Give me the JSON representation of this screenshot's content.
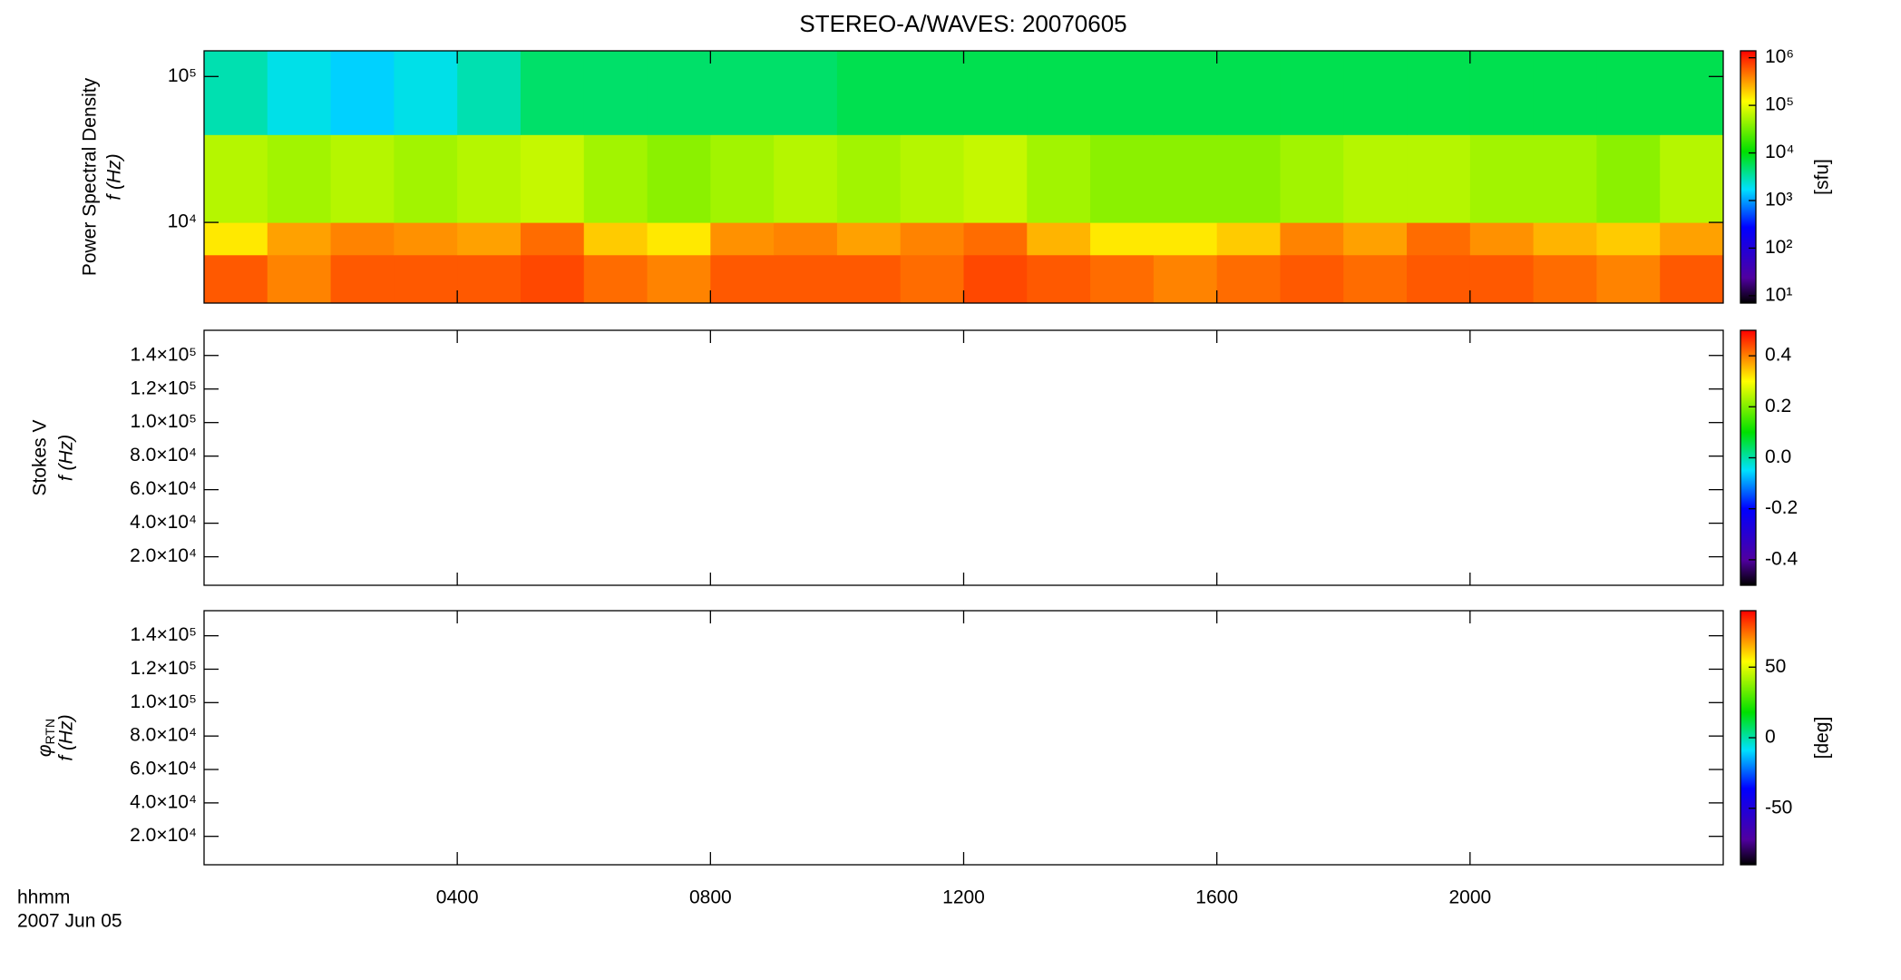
{
  "chart_data": [
    {
      "type": "heatmap",
      "title": "STEREO-A/WAVES: 20070605",
      "ylabel": "Power Spectral Density",
      "ylabel2": "f (Hz)",
      "xlim": [
        0,
        24
      ],
      "xticks": [
        4,
        8,
        12,
        16,
        20
      ],
      "ylog": true,
      "ylim": [
        2800,
        150000
      ],
      "yticks": [
        {
          "value": 10000,
          "label": "10⁴"
        },
        {
          "value": 100000,
          "label": "10⁵"
        }
      ],
      "x": [
        0,
        1,
        2,
        3,
        4,
        5,
        6,
        7,
        8,
        9,
        10,
        11,
        12,
        13,
        14,
        15,
        16,
        17,
        18,
        19,
        20,
        21,
        22,
        23,
        24
      ],
      "y": [
        2800,
        6000,
        10000,
        40000,
        150000
      ],
      "z": [
        [
          600000,
          400000,
          600000,
          600000,
          600000,
          700000,
          500000,
          400000,
          600000,
          600000,
          600000,
          500000,
          700000,
          600000,
          500000,
          400000,
          500000,
          600000,
          500000,
          600000,
          600000,
          500000,
          400000,
          600000
        ],
        [
          150000,
          300000,
          400000,
          350000,
          300000,
          500000,
          200000,
          150000,
          350000,
          400000,
          300000,
          400000,
          500000,
          250000,
          150000,
          150000,
          200000,
          400000,
          300000,
          500000,
          350000,
          250000,
          200000,
          300000
        ],
        [
          60000,
          50000,
          60000,
          50000,
          60000,
          70000,
          50000,
          40000,
          50000,
          60000,
          50000,
          60000,
          70000,
          50000,
          40000,
          40000,
          40000,
          50000,
          60000,
          60000,
          50000,
          50000,
          40000,
          60000
        ],
        [
          3000,
          2000,
          1500,
          2000,
          3000,
          5000,
          5000,
          5000,
          5000,
          5000,
          6000,
          6000,
          6000,
          6000,
          6000,
          6000,
          6000,
          6000,
          6000,
          6000,
          6000,
          6000,
          6000,
          6000
        ]
      ],
      "clog": true,
      "clim": [
        7,
        1400000
      ],
      "cticks": [
        {
          "value": 10,
          "label": "10¹"
        },
        {
          "value": 100,
          "label": "10²"
        },
        {
          "value": 1000,
          "label": "10³"
        },
        {
          "value": 10000,
          "label": "10⁴"
        },
        {
          "value": 100000,
          "label": "10⁵"
        },
        {
          "value": 1000000,
          "label": "10⁶"
        }
      ],
      "clabel": "[sfu]"
    },
    {
      "type": "heatmap",
      "ylabel": "Stokes V",
      "ylabel2": "f (Hz)",
      "xlim": [
        0,
        24
      ],
      "xticks": [
        4,
        8,
        12,
        16,
        20
      ],
      "ylim": [
        3000,
        155000
      ],
      "yticks": [
        {
          "value": 20000,
          "label": "2.0×10⁴"
        },
        {
          "value": 40000,
          "label": "4.0×10⁴"
        },
        {
          "value": 60000,
          "label": "6.0×10⁴"
        },
        {
          "value": 80000,
          "label": "8.0×10⁴"
        },
        {
          "value": 100000,
          "label": "1.0×10⁵"
        },
        {
          "value": 120000,
          "label": "1.2×10⁵"
        },
        {
          "value": 140000,
          "label": "1.4×10⁵"
        }
      ],
      "clim": [
        -0.5,
        0.5
      ],
      "cticks": [
        -0.4,
        -0.2,
        {
          "value": 0,
          "label": "0.0"
        },
        0.2,
        0.4
      ]
    },
    {
      "type": "heatmap",
      "ylabel": "φ",
      "ylabel_subscript": "RTN",
      "ylabel2": "f (Hz)",
      "xlim": [
        0,
        24
      ],
      "xticks": [
        {
          "value": 4,
          "label": "0400"
        },
        {
          "value": 8,
          "label": "0800"
        },
        {
          "value": 12,
          "label": "1200"
        },
        {
          "value": 16,
          "label": "1600"
        },
        {
          "value": 20,
          "label": "2000"
        }
      ],
      "xlabel": "hhmm",
      "date": "2007 Jun 05",
      "ylim": [
        3000,
        155000
      ],
      "yticks": [
        {
          "value": 20000,
          "label": "2.0×10⁴"
        },
        {
          "value": 40000,
          "label": "4.0×10⁴"
        },
        {
          "value": 60000,
          "label": "6.0×10⁴"
        },
        {
          "value": 80000,
          "label": "8.0×10⁴"
        },
        {
          "value": 100000,
          "label": "1.0×10⁵"
        },
        {
          "value": 120000,
          "label": "1.2×10⁵"
        },
        {
          "value": 140000,
          "label": "1.4×10⁵"
        }
      ],
      "clim": [
        -90,
        90
      ],
      "cticks": [
        -50,
        0,
        50
      ],
      "clabel": "[deg]"
    }
  ]
}
